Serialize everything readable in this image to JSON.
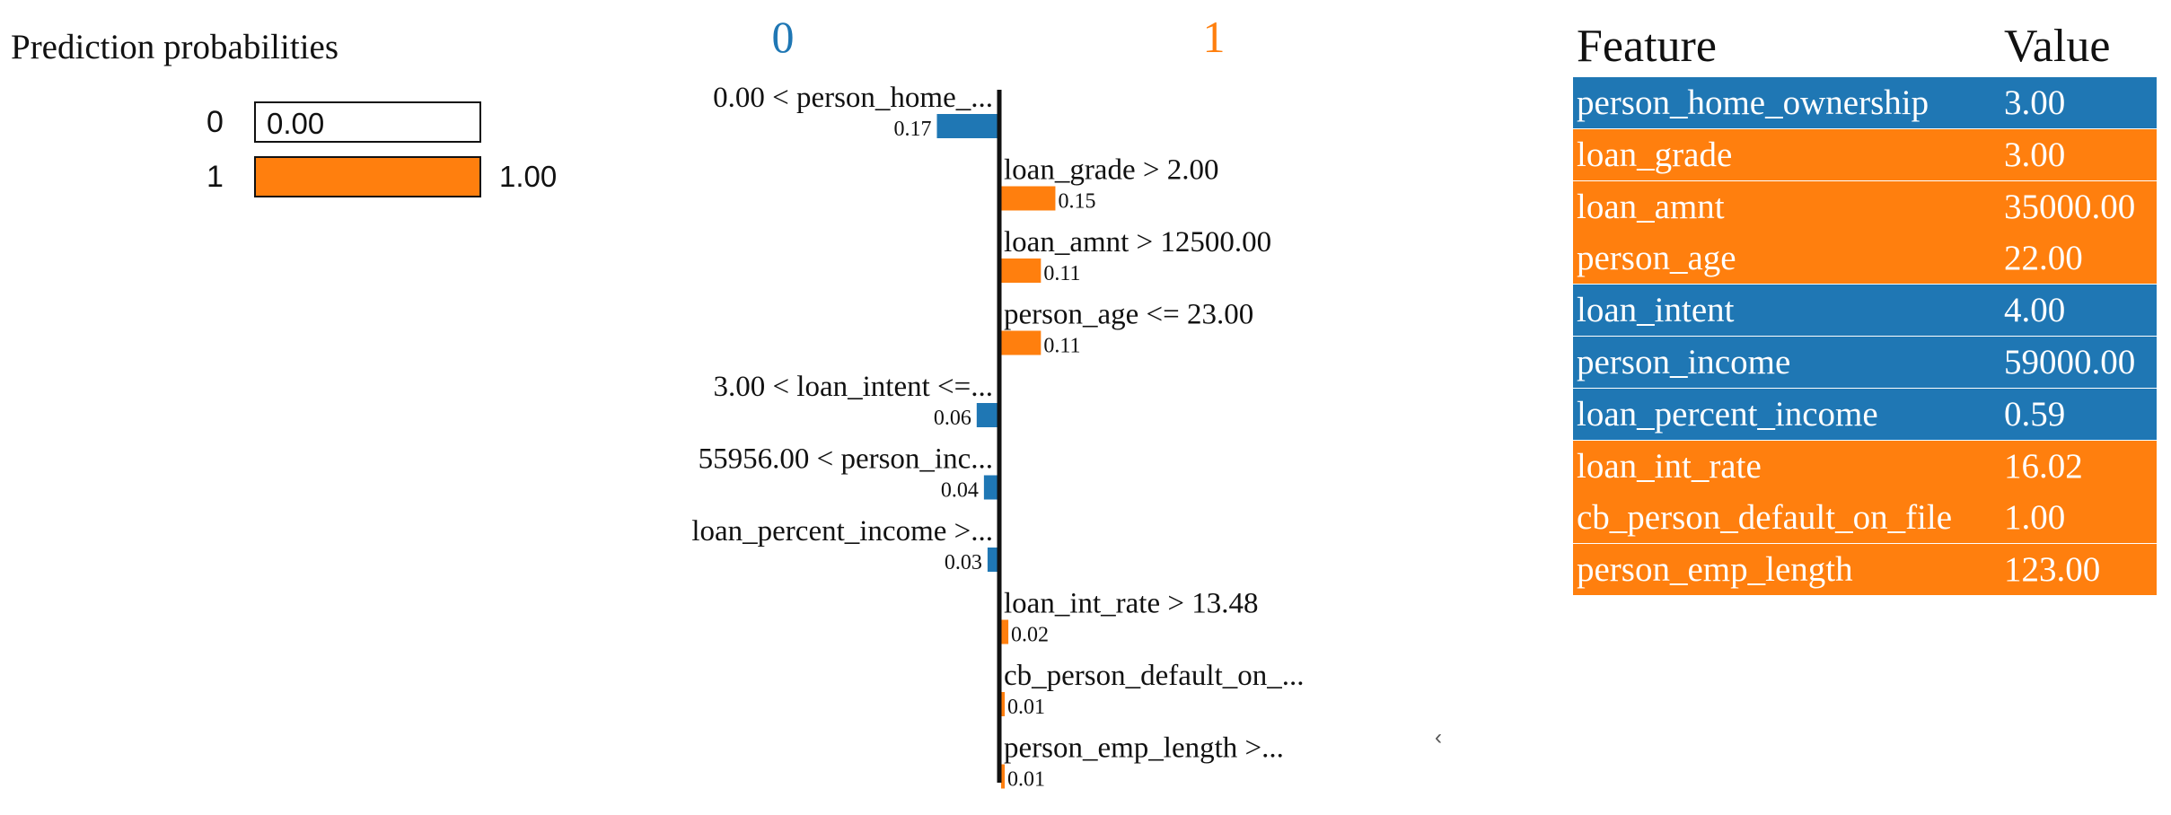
{
  "prediction": {
    "title": "Prediction probabilities",
    "rows": [
      {
        "label": "0",
        "value": 0.0,
        "value_text": "0.00",
        "color": "#ffffff"
      },
      {
        "label": "1",
        "value": 1.0,
        "value_text": "1.00",
        "color": "#ff7f0e"
      }
    ]
  },
  "chart_data": {
    "type": "bar",
    "orientation": "horizontal-diverging",
    "class_labels": [
      "0",
      "1"
    ],
    "class_colors": {
      "0": "#1f77b4",
      "1": "#ff7f0e"
    },
    "bars": [
      {
        "label": "0.00 < person_home_...",
        "value": 0.17,
        "value_text": "0.17",
        "class": "0"
      },
      {
        "label": "loan_grade > 2.00",
        "value": 0.15,
        "value_text": "0.15",
        "class": "1"
      },
      {
        "label": "loan_amnt > 12500.00",
        "value": 0.11,
        "value_text": "0.11",
        "class": "1"
      },
      {
        "label": "person_age <= 23.00",
        "value": 0.11,
        "value_text": "0.11",
        "class": "1"
      },
      {
        "label": "3.00 < loan_intent <=...",
        "value": 0.06,
        "value_text": "0.06",
        "class": "0"
      },
      {
        "label": "55956.00 < person_inc...",
        "value": 0.04,
        "value_text": "0.04",
        "class": "0"
      },
      {
        "label": "loan_percent_income >...",
        "value": 0.03,
        "value_text": "0.03",
        "class": "0"
      },
      {
        "label": "loan_int_rate > 13.48",
        "value": 0.02,
        "value_text": "0.02",
        "class": "1"
      },
      {
        "label": "cb_person_default_on_...",
        "value": 0.01,
        "value_text": "0.01",
        "class": "1"
      },
      {
        "label": "person_emp_length >...",
        "value": 0.01,
        "value_text": "0.01",
        "class": "1"
      }
    ]
  },
  "table": {
    "headers": {
      "feature": "Feature",
      "value": "Value"
    },
    "rows": [
      {
        "feature": "person_home_ownership",
        "value": "3.00",
        "class": "0"
      },
      {
        "feature": "loan_grade",
        "value": "3.00",
        "class": "1"
      },
      {
        "feature": "loan_amnt",
        "value": "35000.00",
        "class": "1"
      },
      {
        "feature": "person_age",
        "value": "22.00",
        "class": "1"
      },
      {
        "feature": "loan_intent",
        "value": "4.00",
        "class": "0"
      },
      {
        "feature": "person_income",
        "value": "59000.00",
        "class": "0"
      },
      {
        "feature": "loan_percent_income",
        "value": "0.59",
        "class": "0"
      },
      {
        "feature": "loan_int_rate",
        "value": "16.02",
        "class": "1"
      },
      {
        "feature": "cb_person_default_on_file",
        "value": "1.00",
        "class": "1"
      },
      {
        "feature": "person_emp_length",
        "value": "123.00",
        "class": "1"
      }
    ]
  },
  "misc": {
    "caret": "‹"
  }
}
